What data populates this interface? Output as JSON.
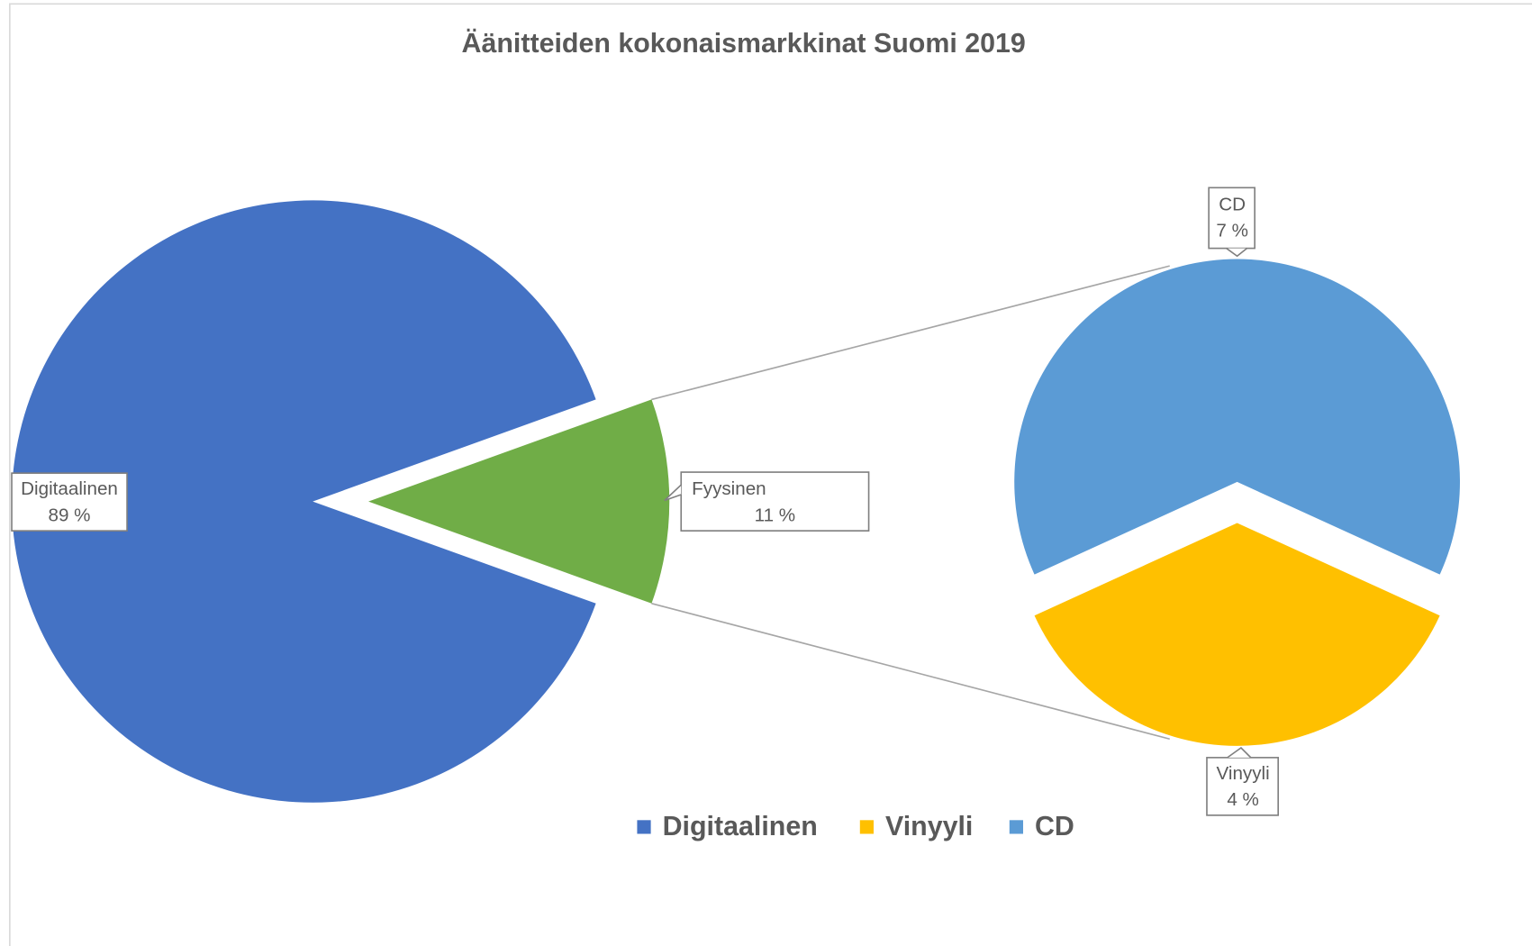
{
  "chart_data": {
    "type": "pie",
    "title": "Äänitteiden kokonaismarkkinat Suomi 2019",
    "categories": [
      "Digitaalinen",
      "Fyysinen"
    ],
    "values": [
      89,
      11
    ],
    "value_labels": [
      "89 %",
      "11 %"
    ],
    "colors": [
      "#4472c4",
      "#70ad47"
    ],
    "secondary": {
      "categories": [
        "CD",
        "Vinyyli"
      ],
      "values": [
        7,
        4
      ],
      "value_labels": [
        "7 %",
        "4 %"
      ],
      "colors": [
        "#5b9bd5",
        "#ffc000"
      ]
    },
    "legend": "bottom"
  }
}
